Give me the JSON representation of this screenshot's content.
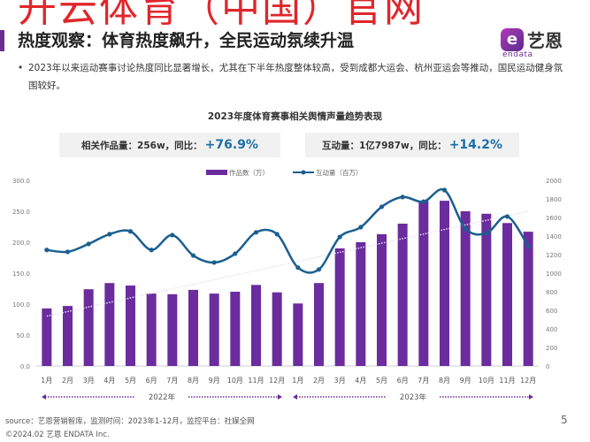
{
  "watermark": "开云体育（中国）官网",
  "header": {
    "title": "热度观察：体育热度飙升，全民运动氛续升温",
    "logo_cn": "艺恩",
    "logo_en": "endata"
  },
  "bullet": "2023年以来运动赛事讨论热度同比显著增长，尤其在下半年热度整体较高，受到成都大运会、杭州亚运会等推动，国民运动健身氛围较好。",
  "kpis": [
    {
      "label": "相关作品量：256w，同比：",
      "value": "+76.9%"
    },
    {
      "label": "互动量：1亿7987w，同比：",
      "value": "+14.2%"
    }
  ],
  "chart_data": {
    "type": "bar+line",
    "title": "2023年度体育赛事相关舆情声量趋势表现",
    "categories": [
      "1月",
      "2月",
      "3月",
      "4月",
      "5月",
      "6月",
      "7月",
      "8月",
      "9月",
      "10月",
      "11月",
      "12月",
      "1月",
      "2月",
      "3月",
      "4月",
      "5月",
      "6月",
      "7月",
      "8月",
      "9月",
      "10月",
      "11月",
      "12月"
    ],
    "year_groups": [
      {
        "label": "2022年"
      },
      {
        "label": "2023年"
      }
    ],
    "series": [
      {
        "name": "作品数（万）",
        "type": "bar",
        "axis": "left",
        "color": "#6b2c9e",
        "values": [
          93,
          97,
          124,
          134,
          130,
          117,
          116,
          123,
          117,
          120,
          131,
          119,
          101,
          134,
          190,
          200,
          213,
          230,
          267,
          267,
          250,
          246,
          231,
          217
        ]
      },
      {
        "name": "互动量（百万）",
        "type": "line",
        "axis": "right",
        "color": "#1a5f8f",
        "values": [
          1250,
          1230,
          1315,
          1420,
          1450,
          1250,
          1410,
          1190,
          1115,
          1210,
          1440,
          1420,
          1060,
          1040,
          1390,
          1495,
          1715,
          1820,
          1770,
          1895,
          1480,
          1430,
          1610,
          1290
        ]
      }
    ],
    "trendline": "dotted linear trend of 作品数",
    "y_left": {
      "ylim": [
        0,
        300
      ],
      "ticks": [
        "0.0",
        "50.0",
        "100.0",
        "150.0",
        "200.0",
        "250.0",
        "300.0"
      ]
    },
    "y_right": {
      "ylim": [
        0,
        2000
      ],
      "ticks": [
        "0",
        "200",
        "400",
        "600",
        "800",
        "1000",
        "1200",
        "1400",
        "1600",
        "1800",
        "2000"
      ]
    },
    "legend": "top-center",
    "grid": false
  },
  "footer": {
    "source": "source：艺恩营销智库，监测时间：2023年1-12月，监控平台：社媒全网",
    "copyright": "©2024.02  艺恩 ENDATA Inc.",
    "page": "5"
  }
}
